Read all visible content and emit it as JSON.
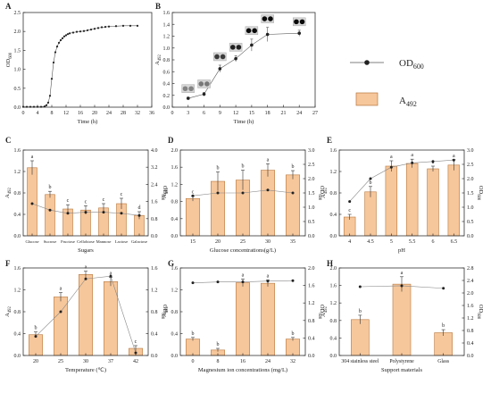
{
  "legend": {
    "od_label": "OD600",
    "a_label": "A492"
  },
  "colors": {
    "bar_fill": "#f6c79b",
    "bar_stroke": "#b9773d",
    "line": "#555555",
    "marker": "#222222",
    "axis": "#333333"
  },
  "chart_data": [
    {
      "id": "A",
      "type": "line",
      "title": "",
      "xlabel": "Time (h)",
      "ylabel": "OD600",
      "xlim": [
        0,
        36
      ],
      "xticks": [
        0,
        4,
        8,
        12,
        16,
        20,
        24,
        28,
        32,
        36
      ],
      "ylim": [
        0,
        2.5
      ],
      "yticks": [
        0.0,
        0.5,
        1.0,
        1.5,
        2.0,
        2.5
      ],
      "series": [
        {
          "x": [
            0,
            1,
            2,
            3,
            4,
            5,
            6,
            6.5,
            7,
            7.5,
            8,
            8.5,
            9,
            9.5,
            10,
            10.5,
            11,
            11.5,
            12,
            12.5,
            13,
            14,
            15,
            16,
            17,
            18,
            19,
            20,
            21,
            22,
            23,
            24,
            26,
            28,
            30,
            32
          ],
          "values": [
            0.01,
            0.01,
            0.01,
            0.01,
            0.01,
            0.01,
            0.02,
            0.05,
            0.12,
            0.3,
            0.75,
            1.18,
            1.45,
            1.6,
            1.7,
            1.77,
            1.82,
            1.87,
            1.9,
            1.93,
            1.95,
            1.97,
            1.99,
            2.0,
            2.01,
            2.03,
            2.05,
            2.07,
            2.09,
            2.11,
            2.12,
            2.13,
            2.14,
            2.15,
            2.15,
            2.15
          ]
        }
      ]
    },
    {
      "id": "B",
      "type": "line",
      "title": "",
      "xlabel": "Time (h)",
      "ylabel": "A492",
      "xlim": [
        0,
        27
      ],
      "xticks": [
        0,
        3,
        6,
        9,
        12,
        15,
        18,
        21,
        24,
        27
      ],
      "ylim": [
        0,
        1.6
      ],
      "yticks": [
        0.0,
        0.2,
        0.4,
        0.6,
        0.8,
        1.0,
        1.2,
        1.4,
        1.6
      ],
      "series": [
        {
          "x": [
            3,
            6,
            9,
            12,
            15,
            18,
            24
          ],
          "values": [
            0.15,
            0.22,
            0.65,
            0.82,
            1.05,
            1.23,
            1.25
          ],
          "err": [
            0.02,
            0.03,
            0.06,
            0.05,
            0.1,
            0.12,
            0.05
          ]
        }
      ]
    },
    {
      "id": "C",
      "type": "bar",
      "title": "",
      "xlabel": "Sugars",
      "ylabel": "A492",
      "y2label": "OD600",
      "categories": [
        "Glucose",
        "Sucrose",
        "Fructose",
        "Cellobiose",
        "Mannose",
        "Lactose",
        "Galactose"
      ],
      "ylim": [
        0,
        1.6
      ],
      "yticks": [
        0.0,
        0.4,
        0.8,
        1.2,
        1.6
      ],
      "y2lim": [
        0,
        4.0
      ],
      "y2ticks": [
        0.0,
        0.8,
        1.6,
        2.4,
        3.2,
        4.0
      ],
      "bars": [
        1.27,
        0.77,
        0.5,
        0.48,
        0.52,
        0.6,
        0.38
      ],
      "bar_err": [
        0.13,
        0.06,
        0.08,
        0.08,
        0.08,
        0.1,
        0.07
      ],
      "letters": [
        "a",
        "b",
        "c",
        "c",
        "c",
        "c",
        "d"
      ],
      "line": [
        1.5,
        1.2,
        1.05,
        1.1,
        1.1,
        1.05,
        0.95
      ]
    },
    {
      "id": "D",
      "type": "bar",
      "title": "",
      "xlabel": "Glucose concentrations(g/L)",
      "ylabel": "A492",
      "y2label": "OD600",
      "categories": [
        "15",
        "20",
        "25",
        "30",
        "35"
      ],
      "ylim": [
        0,
        2.0
      ],
      "yticks": [
        0.0,
        0.4,
        0.8,
        1.2,
        1.6,
        2.0
      ],
      "y2lim": [
        0,
        3.0
      ],
      "y2ticks": [
        0.0,
        0.5,
        1.0,
        1.5,
        2.0,
        2.5,
        3.0
      ],
      "bars": [
        0.87,
        1.27,
        1.3,
        1.53,
        1.42
      ],
      "bar_err": [
        0.06,
        0.22,
        0.23,
        0.15,
        0.1
      ],
      "letters": [
        "c",
        "b",
        "b",
        "a",
        "b"
      ],
      "line": [
        1.4,
        1.5,
        1.5,
        1.6,
        1.5
      ]
    },
    {
      "id": "E",
      "type": "bar",
      "title": "",
      "xlabel": "pH",
      "ylabel": "A492",
      "y2label": "OD600",
      "categories": [
        "4",
        "4.5",
        "5",
        "5.5",
        "6",
        "6.5"
      ],
      "ylim": [
        0,
        1.6
      ],
      "yticks": [
        0.0,
        0.4,
        0.8,
        1.2,
        1.6
      ],
      "y2lim": [
        0,
        3.0
      ],
      "y2ticks": [
        0.0,
        0.5,
        1.0,
        1.5,
        2.0,
        2.5,
        3.0
      ],
      "bars": [
        0.35,
        0.82,
        1.3,
        1.35,
        1.25,
        1.32
      ],
      "bar_err": [
        0.05,
        0.1,
        0.1,
        0.08,
        0.05,
        0.1
      ],
      "letters": [
        "c",
        "b",
        "a",
        "a",
        "a",
        "a"
      ],
      "line": [
        1.2,
        2.0,
        2.4,
        2.55,
        2.6,
        2.65
      ]
    },
    {
      "id": "F",
      "type": "bar",
      "title": "",
      "xlabel": "Temperature (℃)",
      "ylabel": "A492",
      "y2label": "OD600",
      "categories": [
        "20",
        "25",
        "30",
        "37",
        "42"
      ],
      "ylim": [
        0,
        1.6
      ],
      "yticks": [
        0.0,
        0.4,
        0.8,
        1.2,
        1.6
      ],
      "y2lim": [
        0,
        1.6
      ],
      "y2ticks": [
        0.0,
        0.4,
        0.8,
        1.2,
        1.6
      ],
      "bars": [
        0.38,
        1.07,
        1.48,
        1.35,
        0.13
      ],
      "bar_err": [
        0.05,
        0.08,
        0.06,
        0.08,
        0.05
      ],
      "letters": [
        "b",
        "a",
        "a",
        "a",
        "c"
      ],
      "line": [
        0.35,
        0.8,
        1.4,
        1.45,
        0.05
      ]
    },
    {
      "id": "G",
      "type": "bar",
      "title": "",
      "xlabel": "Magnesium ion concentrations (mg/L)",
      "ylabel": "A492",
      "y2label": "OD600",
      "categories": [
        "0",
        "8",
        "16",
        "24",
        "32"
      ],
      "ylim": [
        0,
        1.6
      ],
      "yticks": [
        0.0,
        0.4,
        0.8,
        1.2,
        1.6
      ],
      "y2lim": [
        0,
        2.0
      ],
      "y2ticks": [
        0.0,
        0.4,
        0.8,
        1.2,
        1.6,
        2.0
      ],
      "bars": [
        0.3,
        0.1,
        1.33,
        1.32,
        0.3
      ],
      "bar_err": [
        0.03,
        0.03,
        0.07,
        0.06,
        0.03
      ],
      "letters": [
        "b",
        "b",
        "a",
        "a",
        "b"
      ],
      "line": [
        1.66,
        1.68,
        1.68,
        1.7,
        1.71
      ]
    },
    {
      "id": "H",
      "type": "bar",
      "title": "",
      "xlabel": "Support materials",
      "ylabel": "A492",
      "y2label": "OD600",
      "categories": [
        "304 stainless steel",
        "Polystyrene",
        "Glass"
      ],
      "ylim": [
        0,
        2.0
      ],
      "yticks": [
        0.0,
        0.4,
        0.8,
        1.2,
        1.6,
        2.0
      ],
      "y2lim": [
        0,
        2.8
      ],
      "y2ticks": [
        0.0,
        0.4,
        0.8,
        1.2,
        1.6,
        2.0,
        2.4,
        2.8
      ],
      "bars": [
        0.82,
        1.63,
        0.52
      ],
      "bar_err": [
        0.1,
        0.17,
        0.07
      ],
      "letters": [
        "b",
        "a",
        "b"
      ],
      "line": [
        2.2,
        2.23,
        2.15
      ]
    }
  ]
}
